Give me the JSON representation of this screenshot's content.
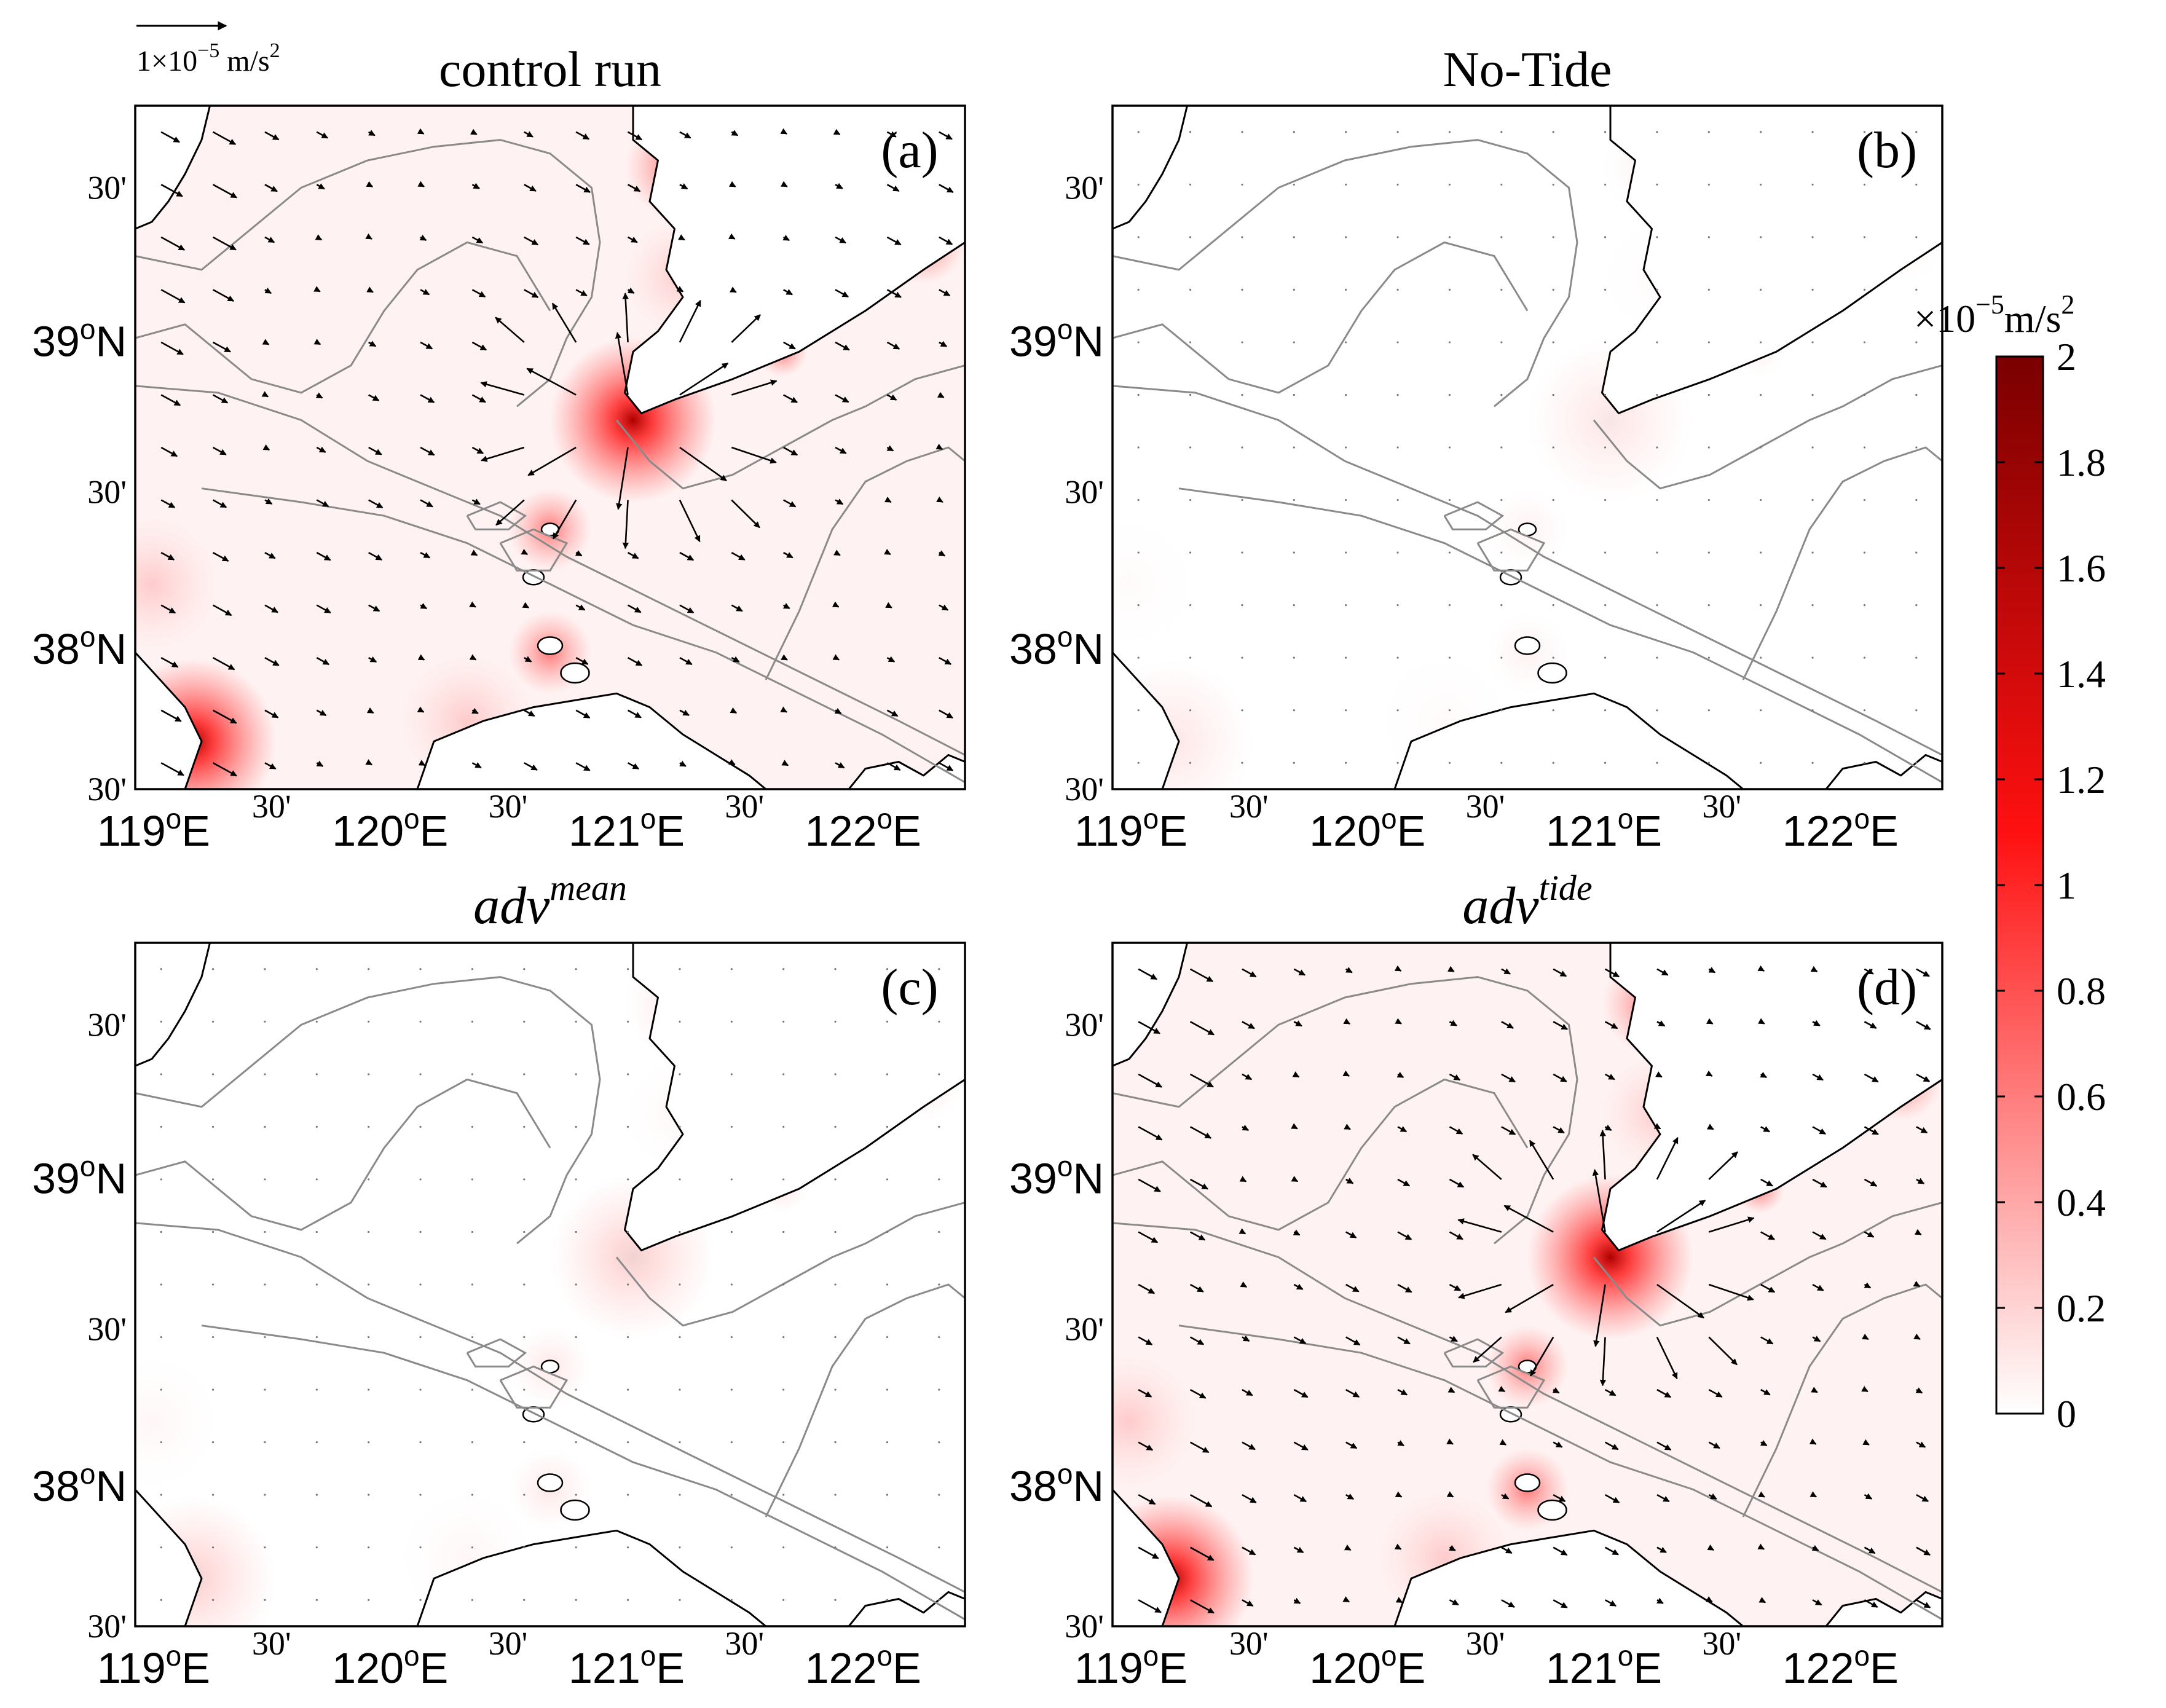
{
  "scale_arrow": {
    "label": "1×10",
    "exp": "−5",
    "unit": " m/s",
    "unit_exp": "2"
  },
  "panels": [
    {
      "id": "a",
      "title": "control run",
      "title_sup": "",
      "label": "(a)",
      "heat": 1.0,
      "arrows": true
    },
    {
      "id": "b",
      "title": "No-Tide",
      "title_sup": "",
      "label": "(b)",
      "heat": 0.1,
      "arrows": false
    },
    {
      "id": "c",
      "title": "adv",
      "title_sup": "mean",
      "label": "(c)",
      "heat": 0.18,
      "arrows": false
    },
    {
      "id": "d",
      "title": "adv",
      "title_sup": "tide",
      "label": "(d)",
      "heat": 1.0,
      "arrows": true
    }
  ],
  "axes": {
    "y_major": [
      "39oN",
      "38oN"
    ],
    "y_major_parts": [
      [
        "39",
        "o",
        "N"
      ],
      [
        "38",
        "o",
        "N"
      ]
    ],
    "y_minor": "30'",
    "x_major": [
      [
        "119",
        "o",
        "E"
      ],
      [
        "120",
        "o",
        "E"
      ],
      [
        "121",
        "o",
        "E"
      ],
      [
        "122",
        "o",
        "E"
      ]
    ],
    "x_minor": "30'"
  },
  "colorbar": {
    "unit_prefix": "×10",
    "unit_exp": "−5",
    "unit": "m/s",
    "unit_exp2": "2",
    "min": 0,
    "max": 2,
    "ticks": [
      "2",
      "1.8",
      "1.6",
      "1.4",
      "1.2",
      "1",
      "0.8",
      "0.6",
      "0.4",
      "0.2",
      "0"
    ],
    "color_low": "#ffffff",
    "color_mid": "#ff0000",
    "color_high": "#7a0000"
  }
}
